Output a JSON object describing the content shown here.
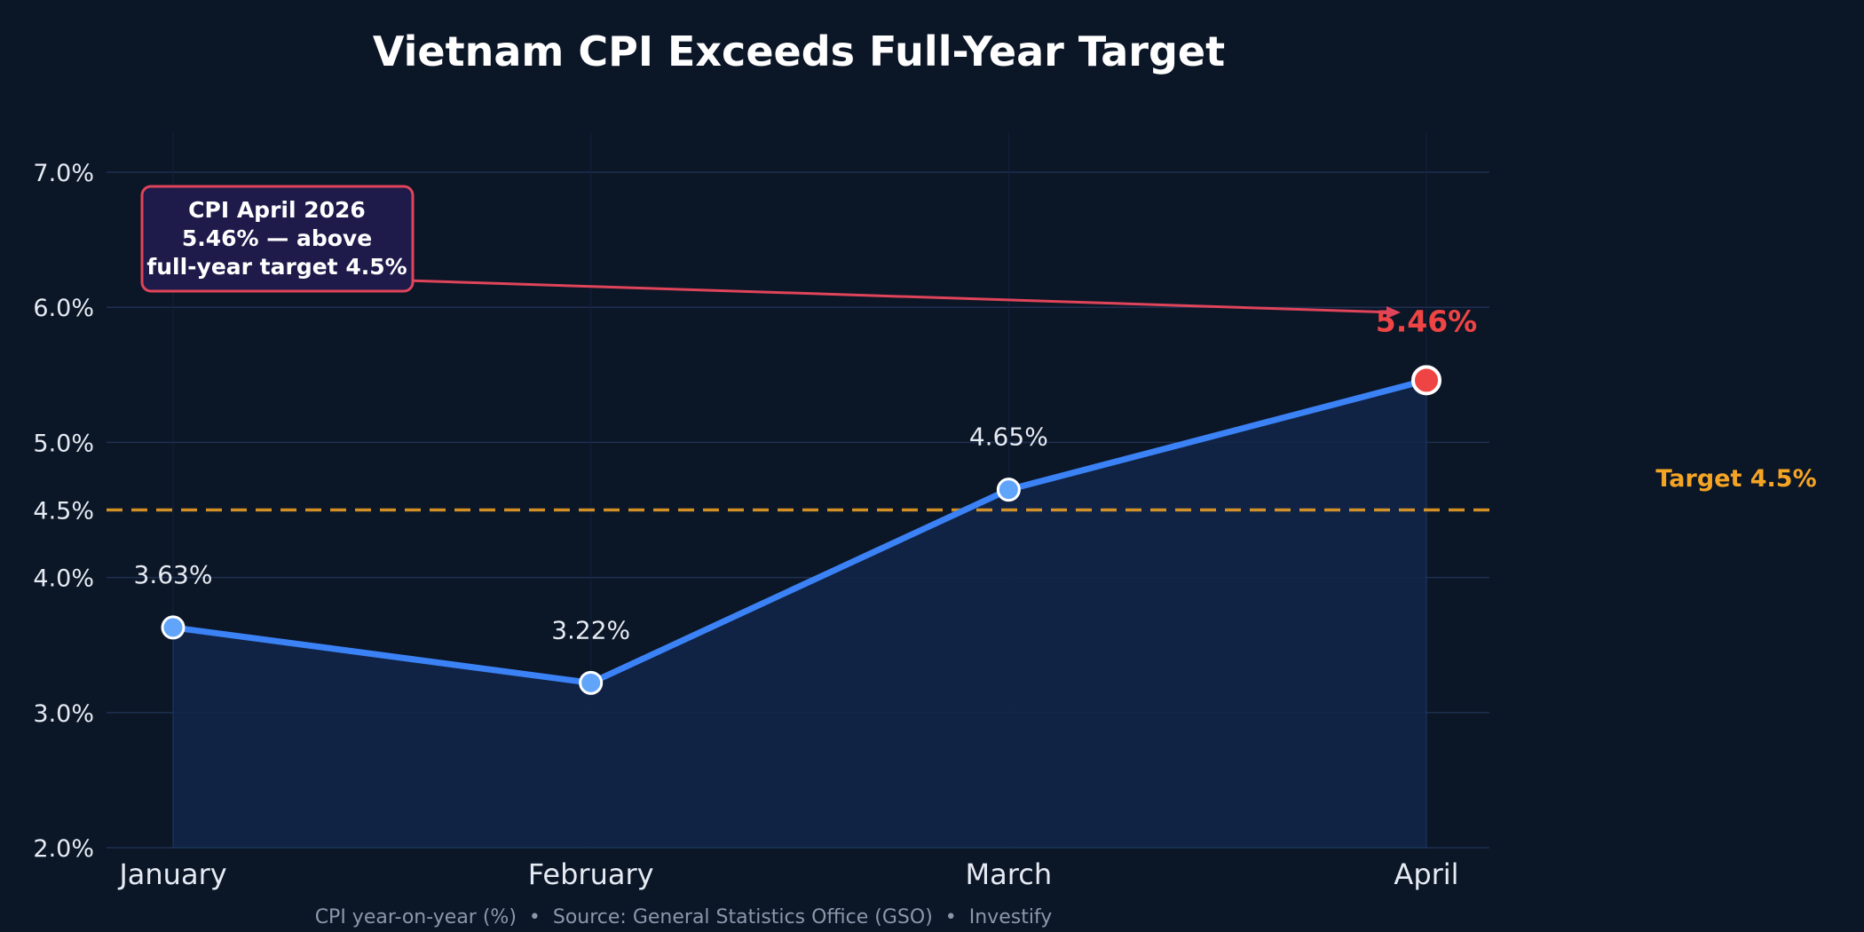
{
  "chart_data": {
    "type": "line",
    "title": "Vietnam CPI Exceeds Full-Year Target",
    "categories": [
      "January",
      "February",
      "March",
      "April"
    ],
    "series": [
      {
        "values": [
          3.63,
          3.22,
          4.65,
          5.46
        ]
      }
    ],
    "data_labels": [
      "3.63%",
      "3.22%",
      "4.65%",
      "5.46%"
    ],
    "ylim": [
      2.0,
      7.0
    ],
    "y_ticks": [
      2.0,
      3.0,
      4.0,
      4.5,
      5.0,
      6.0,
      7.0
    ],
    "y_tick_labels": [
      "2.0%",
      "3.0%",
      "4.0%",
      "4.5%",
      "5.0%",
      "6.0%",
      "7.0%"
    ],
    "target": {
      "value": 4.5,
      "label": "Target 4.5%"
    },
    "annotation": {
      "lines": [
        "CPI April 2026",
        "5.46% — above",
        "full-year target 4.5%"
      ],
      "points_to_category": "April"
    },
    "grid": true,
    "area_fill": true,
    "footer": "CPI year-on-year (%)  •  Source: General Statistics Office (GSO)  •  Investify",
    "colors": {
      "background": "#0b1627",
      "line": "#3b82f6",
      "marker": "#60a5fa",
      "highlight": "#ef4444",
      "target": "#f5a524",
      "grid": "#1e2f4f",
      "callout_fill": "#1e1b4b",
      "callout_border": "#e0445a"
    }
  }
}
